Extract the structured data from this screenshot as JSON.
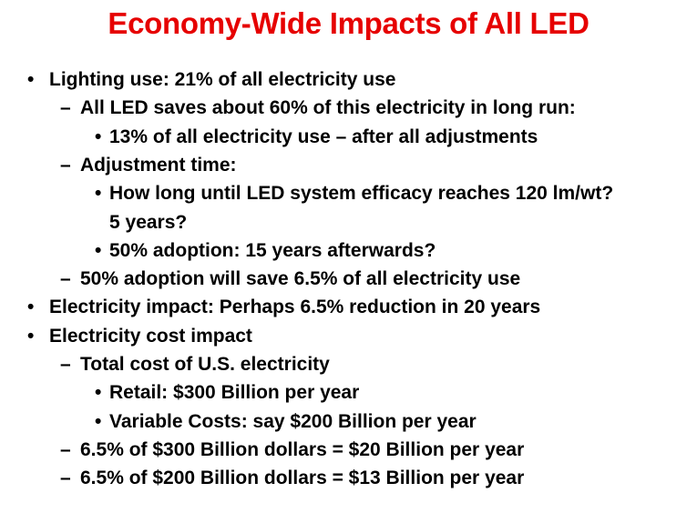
{
  "slide": {
    "title": "Economy-Wide Impacts of All LED",
    "markers": {
      "bullet": "•",
      "dash": "–"
    },
    "lines": [
      {
        "level": 1,
        "text": "Lighting use: 21% of all electricity use"
      },
      {
        "level": 2,
        "text": "All LED saves about 60% of this electricity in long run:"
      },
      {
        "level": 3,
        "text": "13% of all electricity use – after all adjustments"
      },
      {
        "level": 2,
        "text": "Adjustment time:"
      },
      {
        "level": 3,
        "text": "How long until LED system efficacy reaches 120 lm/wt?"
      },
      {
        "level": 4,
        "text": "5 years?"
      },
      {
        "level": 3,
        "text": "50% adoption: 15 years afterwards?"
      },
      {
        "level": 2,
        "text": "50% adoption will save 6.5% of all electricity use"
      },
      {
        "level": 1,
        "text": "Electricity impact:  Perhaps 6.5% reduction in 20 years"
      },
      {
        "level": 1,
        "text": "Electricity cost impact"
      },
      {
        "level": 2,
        "text": "Total cost of U.S. electricity"
      },
      {
        "level": 3,
        "text": "Retail:  $300 Billion per year"
      },
      {
        "level": 3,
        "text": "Variable Costs:  say $200 Billion per year"
      },
      {
        "level": 2,
        "text": "6.5% of $300 Billion dollars = $20 Billion per year"
      },
      {
        "level": 2,
        "text": "6.5% of $200 Billion dollars = $13 Billion per year"
      }
    ]
  }
}
